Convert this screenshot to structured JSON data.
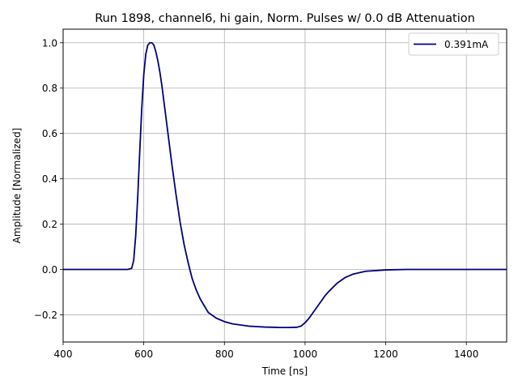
{
  "chart_data": {
    "type": "line",
    "title": "Run 1898, channel6, hi gain, Norm. Pulses w/ 0.0 dB Attenuation",
    "xlabel": "Time [ns]",
    "ylabel": "Amplitude [Normalized]",
    "xlim": [
      400,
      1500
    ],
    "ylim": [
      -0.32,
      1.06
    ],
    "xticks": [
      400,
      600,
      800,
      1000,
      1200,
      1400
    ],
    "yticks": [
      -0.2,
      0.0,
      0.2,
      0.4,
      0.6,
      0.8,
      1.0
    ],
    "xtick_labels": [
      "400",
      "600",
      "800",
      "1000",
      "1200",
      "1400"
    ],
    "ytick_labels": [
      "−0.2",
      "0.0",
      "0.2",
      "0.4",
      "0.6",
      "0.8",
      "1.0"
    ],
    "grid": true,
    "legend": "top-right",
    "series": [
      {
        "name": "0.391mA",
        "color": "#000080",
        "x": [
          400,
          500,
          560,
          570,
          575,
          580,
          585,
          590,
          595,
          600,
          605,
          610,
          615,
          620,
          625,
          630,
          635,
          640,
          645,
          650,
          660,
          670,
          680,
          690,
          700,
          710,
          720,
          730,
          740,
          750,
          760,
          780,
          800,
          820,
          840,
          860,
          880,
          900,
          920,
          940,
          960,
          980,
          990,
          1000,
          1010,
          1020,
          1030,
          1040,
          1050,
          1060,
          1080,
          1100,
          1120,
          1150,
          1200,
          1250,
          1300,
          1400,
          1500
        ],
        "y": [
          0.0,
          0.0,
          0.0,
          0.005,
          0.04,
          0.15,
          0.32,
          0.52,
          0.71,
          0.86,
          0.95,
          0.99,
          1.0,
          1.0,
          0.99,
          0.96,
          0.92,
          0.87,
          0.81,
          0.74,
          0.6,
          0.46,
          0.33,
          0.21,
          0.11,
          0.03,
          -0.04,
          -0.09,
          -0.13,
          -0.16,
          -0.19,
          -0.215,
          -0.23,
          -0.24,
          -0.245,
          -0.25,
          -0.252,
          -0.254,
          -0.255,
          -0.256,
          -0.256,
          -0.255,
          -0.25,
          -0.235,
          -0.215,
          -0.19,
          -0.165,
          -0.14,
          -0.115,
          -0.095,
          -0.06,
          -0.035,
          -0.02,
          -0.008,
          -0.002,
          0.0,
          0.0,
          0.0,
          0.0
        ]
      }
    ]
  }
}
